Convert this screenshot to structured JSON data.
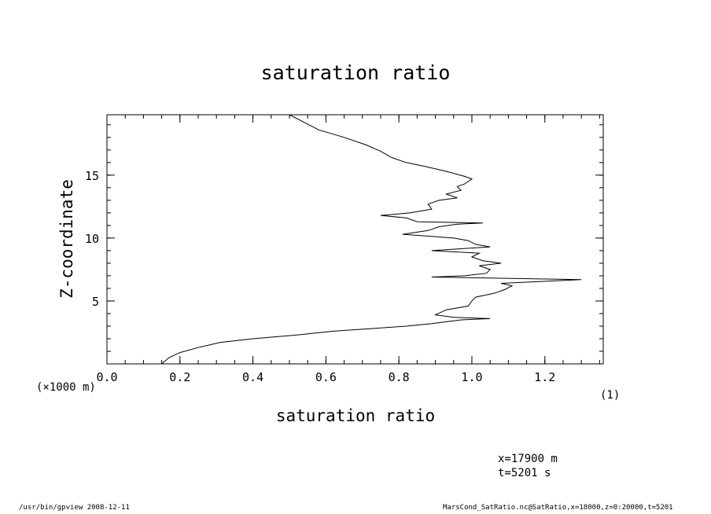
{
  "chart_data": {
    "type": "line",
    "title": "saturation ratio",
    "xlabel": "saturation ratio",
    "ylabel": "Z-coordinate",
    "x_unit": "(1)",
    "y_unit": "(×1000 m)",
    "xlim": [
      0.0,
      1.36
    ],
    "ylim": [
      0.0,
      19.8
    ],
    "x_ticks": [
      "0.0",
      "0.2",
      "0.4",
      "0.6",
      "0.8",
      "1.0",
      "1.2"
    ],
    "x_tick_values": [
      0.0,
      0.2,
      0.4,
      0.6,
      0.8,
      1.0,
      1.2
    ],
    "y_ticks": [
      "5",
      "10",
      "15"
    ],
    "y_tick_values": [
      5,
      10,
      15
    ],
    "grid": false,
    "series": [
      {
        "color": "#000000",
        "points": [
          [
            0.15,
            0.0
          ],
          [
            0.17,
            0.5
          ],
          [
            0.2,
            0.9
          ],
          [
            0.25,
            1.3
          ],
          [
            0.31,
            1.7
          ],
          [
            0.4,
            2.0
          ],
          [
            0.52,
            2.3
          ],
          [
            0.62,
            2.6
          ],
          [
            0.72,
            2.8
          ],
          [
            0.82,
            3.0
          ],
          [
            0.89,
            3.2
          ],
          [
            0.97,
            3.5
          ],
          [
            1.05,
            3.6
          ],
          [
            0.95,
            3.7
          ],
          [
            0.9,
            3.9
          ],
          [
            0.93,
            4.3
          ],
          [
            0.99,
            4.6
          ],
          [
            1.0,
            5.0
          ],
          [
            1.01,
            5.3
          ],
          [
            1.06,
            5.6
          ],
          [
            1.09,
            5.9
          ],
          [
            1.11,
            6.2
          ],
          [
            1.08,
            6.4
          ],
          [
            1.3,
            6.7
          ],
          [
            0.89,
            6.9
          ],
          [
            0.98,
            7.0
          ],
          [
            1.04,
            7.2
          ],
          [
            1.05,
            7.5
          ],
          [
            1.02,
            7.8
          ],
          [
            1.08,
            8.0
          ],
          [
            1.03,
            8.2
          ],
          [
            1.0,
            8.5
          ],
          [
            1.02,
            8.8
          ],
          [
            0.89,
            9.0
          ],
          [
            1.05,
            9.3
          ],
          [
            1.01,
            9.5
          ],
          [
            0.99,
            9.8
          ],
          [
            0.95,
            10.0
          ],
          [
            0.86,
            10.2
          ],
          [
            0.81,
            10.3
          ],
          [
            0.88,
            10.6
          ],
          [
            0.91,
            10.9
          ],
          [
            0.96,
            11.1
          ],
          [
            1.03,
            11.2
          ],
          [
            0.85,
            11.3
          ],
          [
            0.82,
            11.6
          ],
          [
            0.75,
            11.8
          ],
          [
            0.83,
            12.0
          ],
          [
            0.89,
            12.3
          ],
          [
            0.88,
            12.7
          ],
          [
            0.91,
            13.0
          ],
          [
            0.96,
            13.2
          ],
          [
            0.93,
            13.5
          ],
          [
            0.97,
            13.8
          ],
          [
            0.96,
            14.1
          ],
          [
            0.98,
            14.3
          ],
          [
            1.0,
            14.7
          ],
          [
            0.98,
            14.9
          ],
          [
            0.93,
            15.3
          ],
          [
            0.87,
            15.7
          ],
          [
            0.82,
            16.0
          ],
          [
            0.78,
            16.4
          ],
          [
            0.75,
            16.9
          ],
          [
            0.71,
            17.4
          ],
          [
            0.65,
            18.0
          ],
          [
            0.58,
            18.6
          ],
          [
            0.5,
            19.8
          ]
        ]
      }
    ]
  },
  "info": {
    "x_position": "x=17900 m",
    "time": "t=5201 s"
  },
  "footer": {
    "program": "/usr/bin/gpview   2008-12-11",
    "source": "MarsCond_SatRatio.nc@SatRatio,x=18000,z=0:20000,t=5201"
  }
}
